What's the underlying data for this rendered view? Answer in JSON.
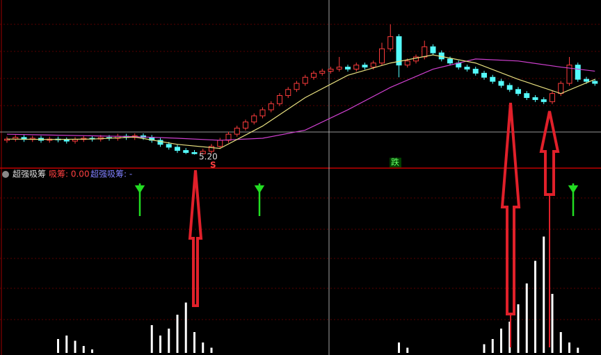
{
  "indicator_bar": {
    "name": "超强吸筹",
    "item1": "吸筹: 0.00",
    "item2": "超强吸筹: -"
  },
  "annotations": {
    "low_price": "5.20",
    "signal_s": "S",
    "signal_down": "跌"
  },
  "price_chart": {
    "ylim": [
      4.9,
      9.0
    ],
    "open": [
      5.55,
      5.58,
      5.62,
      5.57,
      5.6,
      5.55,
      5.58,
      5.56,
      5.53,
      5.57,
      5.6,
      5.58,
      5.62,
      5.6,
      5.65,
      5.62,
      5.66,
      5.62,
      5.55,
      5.45,
      5.38,
      5.3,
      5.25,
      5.22,
      5.28,
      5.4,
      5.55,
      5.7,
      5.85,
      6.0,
      6.15,
      6.3,
      6.45,
      6.65,
      6.8,
      6.95,
      7.1,
      7.2,
      7.25,
      7.3,
      7.35,
      7.3,
      7.4,
      7.35,
      7.45,
      7.8,
      8.1,
      7.4,
      7.5,
      7.6,
      7.85,
      7.7,
      7.55,
      7.45,
      7.35,
      7.3,
      7.2,
      7.1,
      7.0,
      6.9,
      6.8,
      6.7,
      6.6,
      6.55,
      6.5,
      6.7,
      6.95,
      7.4,
      7.05,
      7.0
    ],
    "close": [
      5.58,
      5.62,
      5.57,
      5.6,
      5.55,
      5.58,
      5.56,
      5.53,
      5.57,
      5.6,
      5.58,
      5.62,
      5.6,
      5.65,
      5.62,
      5.66,
      5.62,
      5.55,
      5.45,
      5.38,
      5.3,
      5.25,
      5.22,
      5.28,
      5.4,
      5.55,
      5.7,
      5.85,
      6.0,
      6.15,
      6.3,
      6.45,
      6.65,
      6.8,
      6.95,
      7.1,
      7.2,
      7.25,
      7.3,
      7.35,
      7.3,
      7.4,
      7.35,
      7.45,
      7.8,
      8.1,
      7.4,
      7.5,
      7.6,
      7.85,
      7.7,
      7.55,
      7.45,
      7.35,
      7.3,
      7.2,
      7.1,
      7.0,
      6.9,
      6.8,
      6.7,
      6.6,
      6.55,
      6.5,
      6.7,
      6.95,
      7.4,
      7.05,
      7.0,
      6.95
    ],
    "high": [
      5.64,
      5.68,
      5.68,
      5.66,
      5.66,
      5.64,
      5.64,
      5.62,
      5.63,
      5.66,
      5.66,
      5.68,
      5.68,
      5.71,
      5.71,
      5.72,
      5.72,
      5.68,
      5.61,
      5.51,
      5.44,
      5.36,
      5.31,
      5.34,
      5.46,
      5.61,
      5.76,
      5.91,
      6.06,
      6.21,
      6.36,
      6.51,
      6.71,
      6.86,
      7.01,
      7.16,
      7.26,
      7.31,
      7.36,
      7.6,
      7.41,
      7.46,
      7.46,
      7.51,
      7.95,
      8.4,
      8.16,
      7.56,
      7.66,
      8.0,
      7.91,
      7.76,
      7.61,
      7.51,
      7.41,
      7.36,
      7.26,
      7.16,
      7.06,
      6.96,
      6.86,
      6.76,
      6.66,
      6.61,
      6.76,
      7.01,
      7.6,
      7.46,
      7.11,
      7.06
    ],
    "low": [
      5.49,
      5.52,
      5.51,
      5.51,
      5.49,
      5.49,
      5.5,
      5.47,
      5.47,
      5.51,
      5.52,
      5.52,
      5.54,
      5.54,
      5.56,
      5.56,
      5.56,
      5.49,
      5.39,
      5.32,
      5.24,
      5.21,
      5.2,
      5.2,
      5.22,
      5.34,
      5.49,
      5.64,
      5.79,
      5.94,
      6.09,
      6.24,
      6.39,
      6.59,
      6.74,
      6.89,
      7.04,
      7.14,
      7.19,
      7.24,
      7.24,
      7.24,
      7.29,
      7.29,
      7.39,
      7.74,
      7.1,
      7.34,
      7.44,
      7.54,
      7.64,
      7.49,
      7.39,
      7.29,
      7.24,
      7.14,
      7.04,
      6.94,
      6.84,
      6.74,
      6.64,
      6.54,
      6.49,
      6.44,
      6.44,
      6.64,
      6.89,
      6.99,
      6.94,
      6.89
    ],
    "ma_short": {
      "color": "#e8e080",
      "index": [
        0,
        5,
        10,
        15,
        20,
        25,
        30,
        35,
        40,
        45,
        50,
        55,
        60,
        65,
        69
      ],
      "values": [
        5.58,
        5.57,
        5.58,
        5.63,
        5.45,
        5.35,
        5.9,
        6.6,
        7.15,
        7.45,
        7.65,
        7.45,
        7.05,
        6.7,
        7.05
      ]
    },
    "ma_long": {
      "color": "#d040d0",
      "index": [
        0,
        5,
        10,
        15,
        20,
        25,
        30,
        35,
        40,
        45,
        50,
        55,
        60,
        65,
        69
      ],
      "values": [
        5.7,
        5.68,
        5.66,
        5.64,
        5.6,
        5.55,
        5.6,
        5.8,
        6.3,
        6.85,
        7.3,
        7.55,
        7.5,
        7.35,
        7.25
      ]
    },
    "up_color": "#ff3c3c",
    "down_color": "#54fcfc"
  },
  "indicator_chart": {
    "ylim": [
      0,
      100
    ],
    "color": "#ffffff",
    "index": [
      6,
      7,
      8,
      9,
      10,
      17,
      18,
      19,
      20,
      21,
      22,
      23,
      24,
      46,
      47,
      56,
      57,
      58,
      59,
      60,
      61,
      62,
      63,
      64,
      65,
      66,
      67
    ],
    "values": [
      8,
      10,
      7,
      4,
      2,
      16,
      10,
      14,
      22,
      29,
      12,
      6,
      3,
      6,
      3,
      5,
      8,
      14,
      18,
      28,
      40,
      53,
      67,
      34,
      12,
      6,
      3
    ]
  }
}
